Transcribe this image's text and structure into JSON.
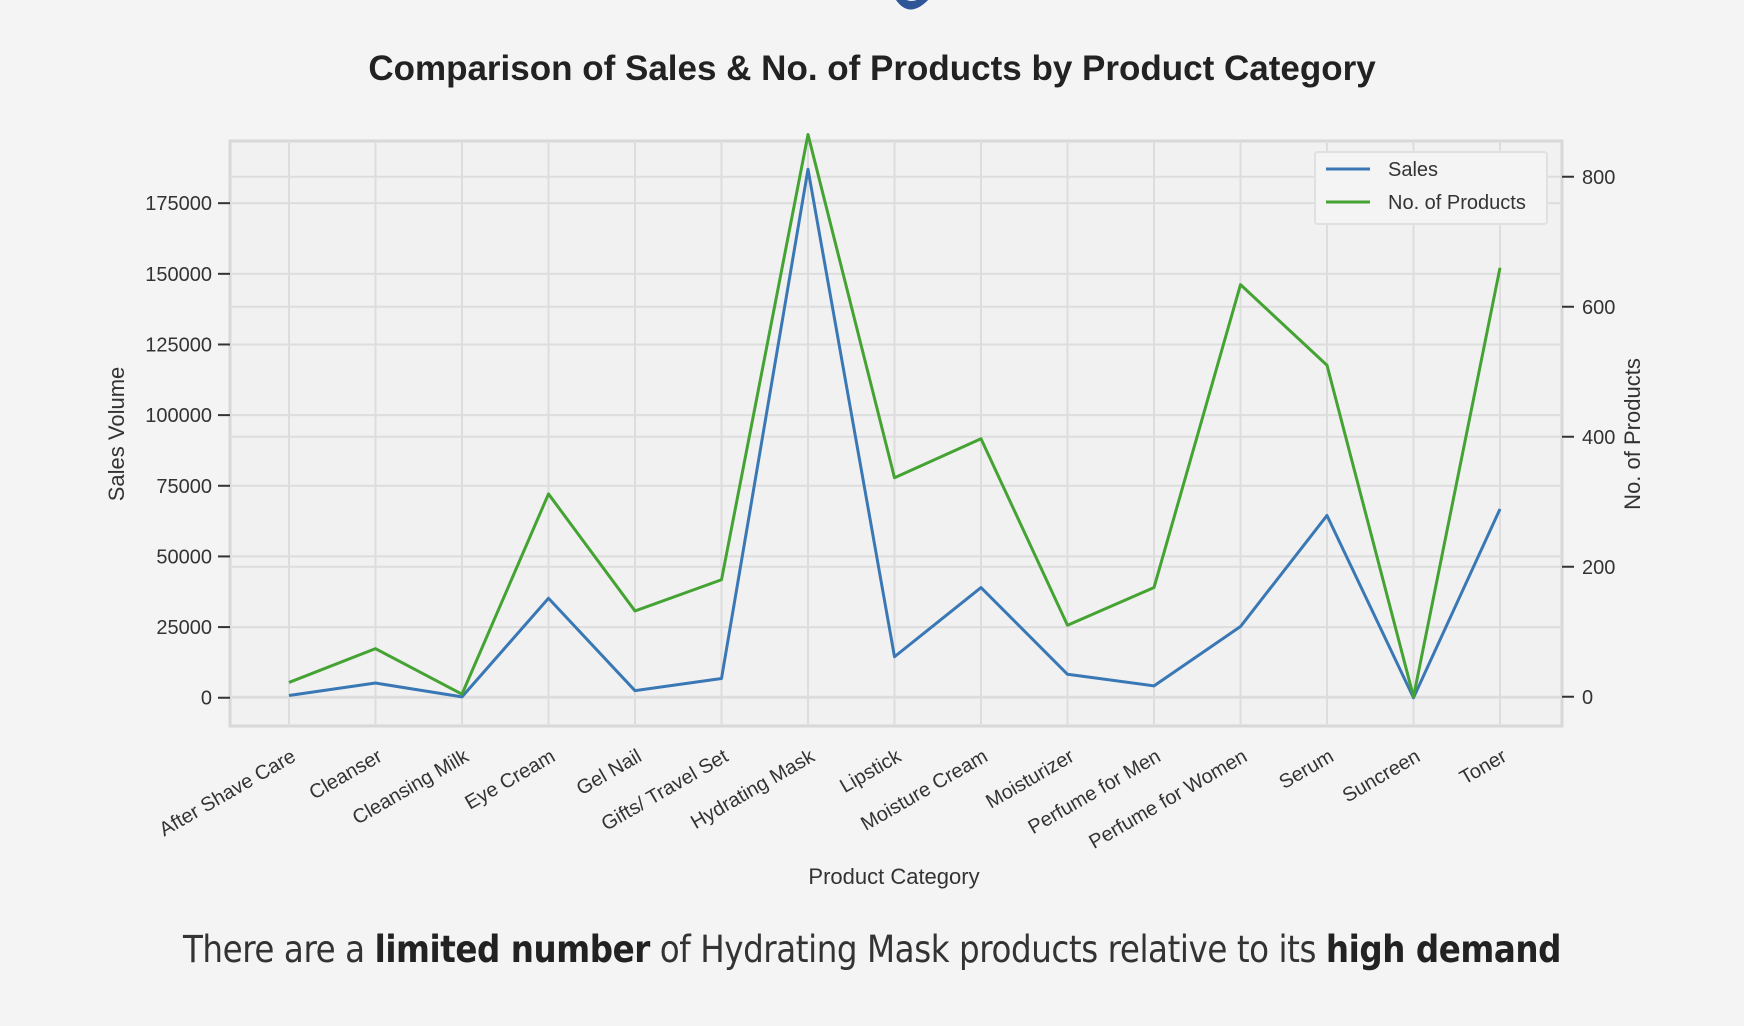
{
  "colors": {
    "background": "#f4f4f5",
    "plot_background": "#f1f1f2",
    "grid": "#dddddd",
    "sales": "#3a78b5",
    "products": "#44a332",
    "header_fragment": "#2f5599"
  },
  "caption": {
    "part1": "There are a ",
    "bold1": "limited number",
    "part2": " of Hydrating Mask products relative to its ",
    "bold2": "high demand"
  },
  "chart_data": {
    "type": "line",
    "title": "Comparison of Sales & No. of Products by Product Category",
    "xlabel": "Product Category",
    "ylabel": "Sales Volume",
    "y2label": "No. of Products",
    "categories": [
      "After Shave Care",
      "Cleanser",
      "Cleansing Milk",
      "Eye Cream",
      "Gel Nail",
      "Gifts/ Travel Set",
      "Hydrating Mask",
      "Lipstick",
      "Moisture Cream",
      "Moisturizer",
      "Perfume for Men",
      "Perfume for Women",
      "Serum",
      "Suncreen",
      "Toner"
    ],
    "ylim": [
      -10000,
      197000
    ],
    "y2lim": [
      -45,
      855
    ],
    "yticks": [
      0,
      25000,
      50000,
      75000,
      100000,
      125000,
      150000,
      175000
    ],
    "y2ticks": [
      0,
      200,
      400,
      600,
      800
    ],
    "grid": true,
    "legend_position": "top-right",
    "series": [
      {
        "name": "Sales",
        "axis": "left",
        "values": [
          800,
          5200,
          300,
          35200,
          2500,
          6800,
          187000,
          14500,
          39000,
          8300,
          4200,
          25200,
          64500,
          0,
          66800
        ]
      },
      {
        "name": "No. of Products",
        "axis": "right",
        "values": [
          22,
          74,
          4,
          312,
          132,
          180,
          865,
          337,
          397,
          110,
          168,
          634,
          510,
          0,
          660
        ]
      }
    ]
  }
}
